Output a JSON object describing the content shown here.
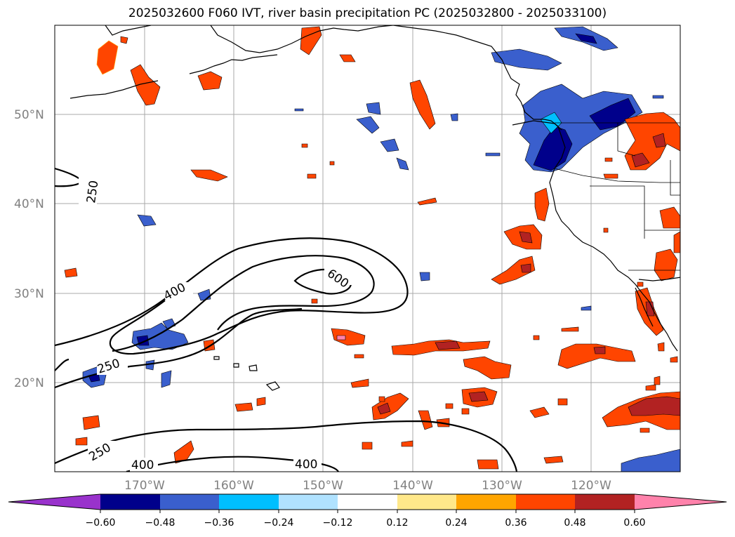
{
  "title": "2025032600 F060 IVT, river basin precipitation PC (2025032800 - 2025033100)",
  "colors": {
    "grid": "#a9a9a9",
    "coast": "#000000",
    "neg": [
      "#9932cc",
      "#00008b",
      "#3a5fcd",
      "#00bfff",
      "#b0e2ff"
    ],
    "neutral": "#ffffff",
    "pos": [
      "#ffe88a",
      "#ffa500",
      "#ff4500",
      "#b22222",
      "#ff82ab"
    ]
  },
  "lat_labels": [
    "50°N",
    "40°N",
    "30°N",
    "20°N"
  ],
  "lon_labels": [
    "170°W",
    "160°W",
    "150°W",
    "140°W",
    "130°W",
    "120°W"
  ],
  "ivt_contour_labels": [
    "250",
    "400",
    "600",
    "250",
    "250",
    "400",
    "400"
  ],
  "colorbar": {
    "ticks": [
      "−0.60",
      "−0.48",
      "−0.36",
      "−0.24",
      "−0.12",
      "0.12",
      "0.24",
      "0.36",
      "0.48",
      "0.60"
    ]
  }
}
